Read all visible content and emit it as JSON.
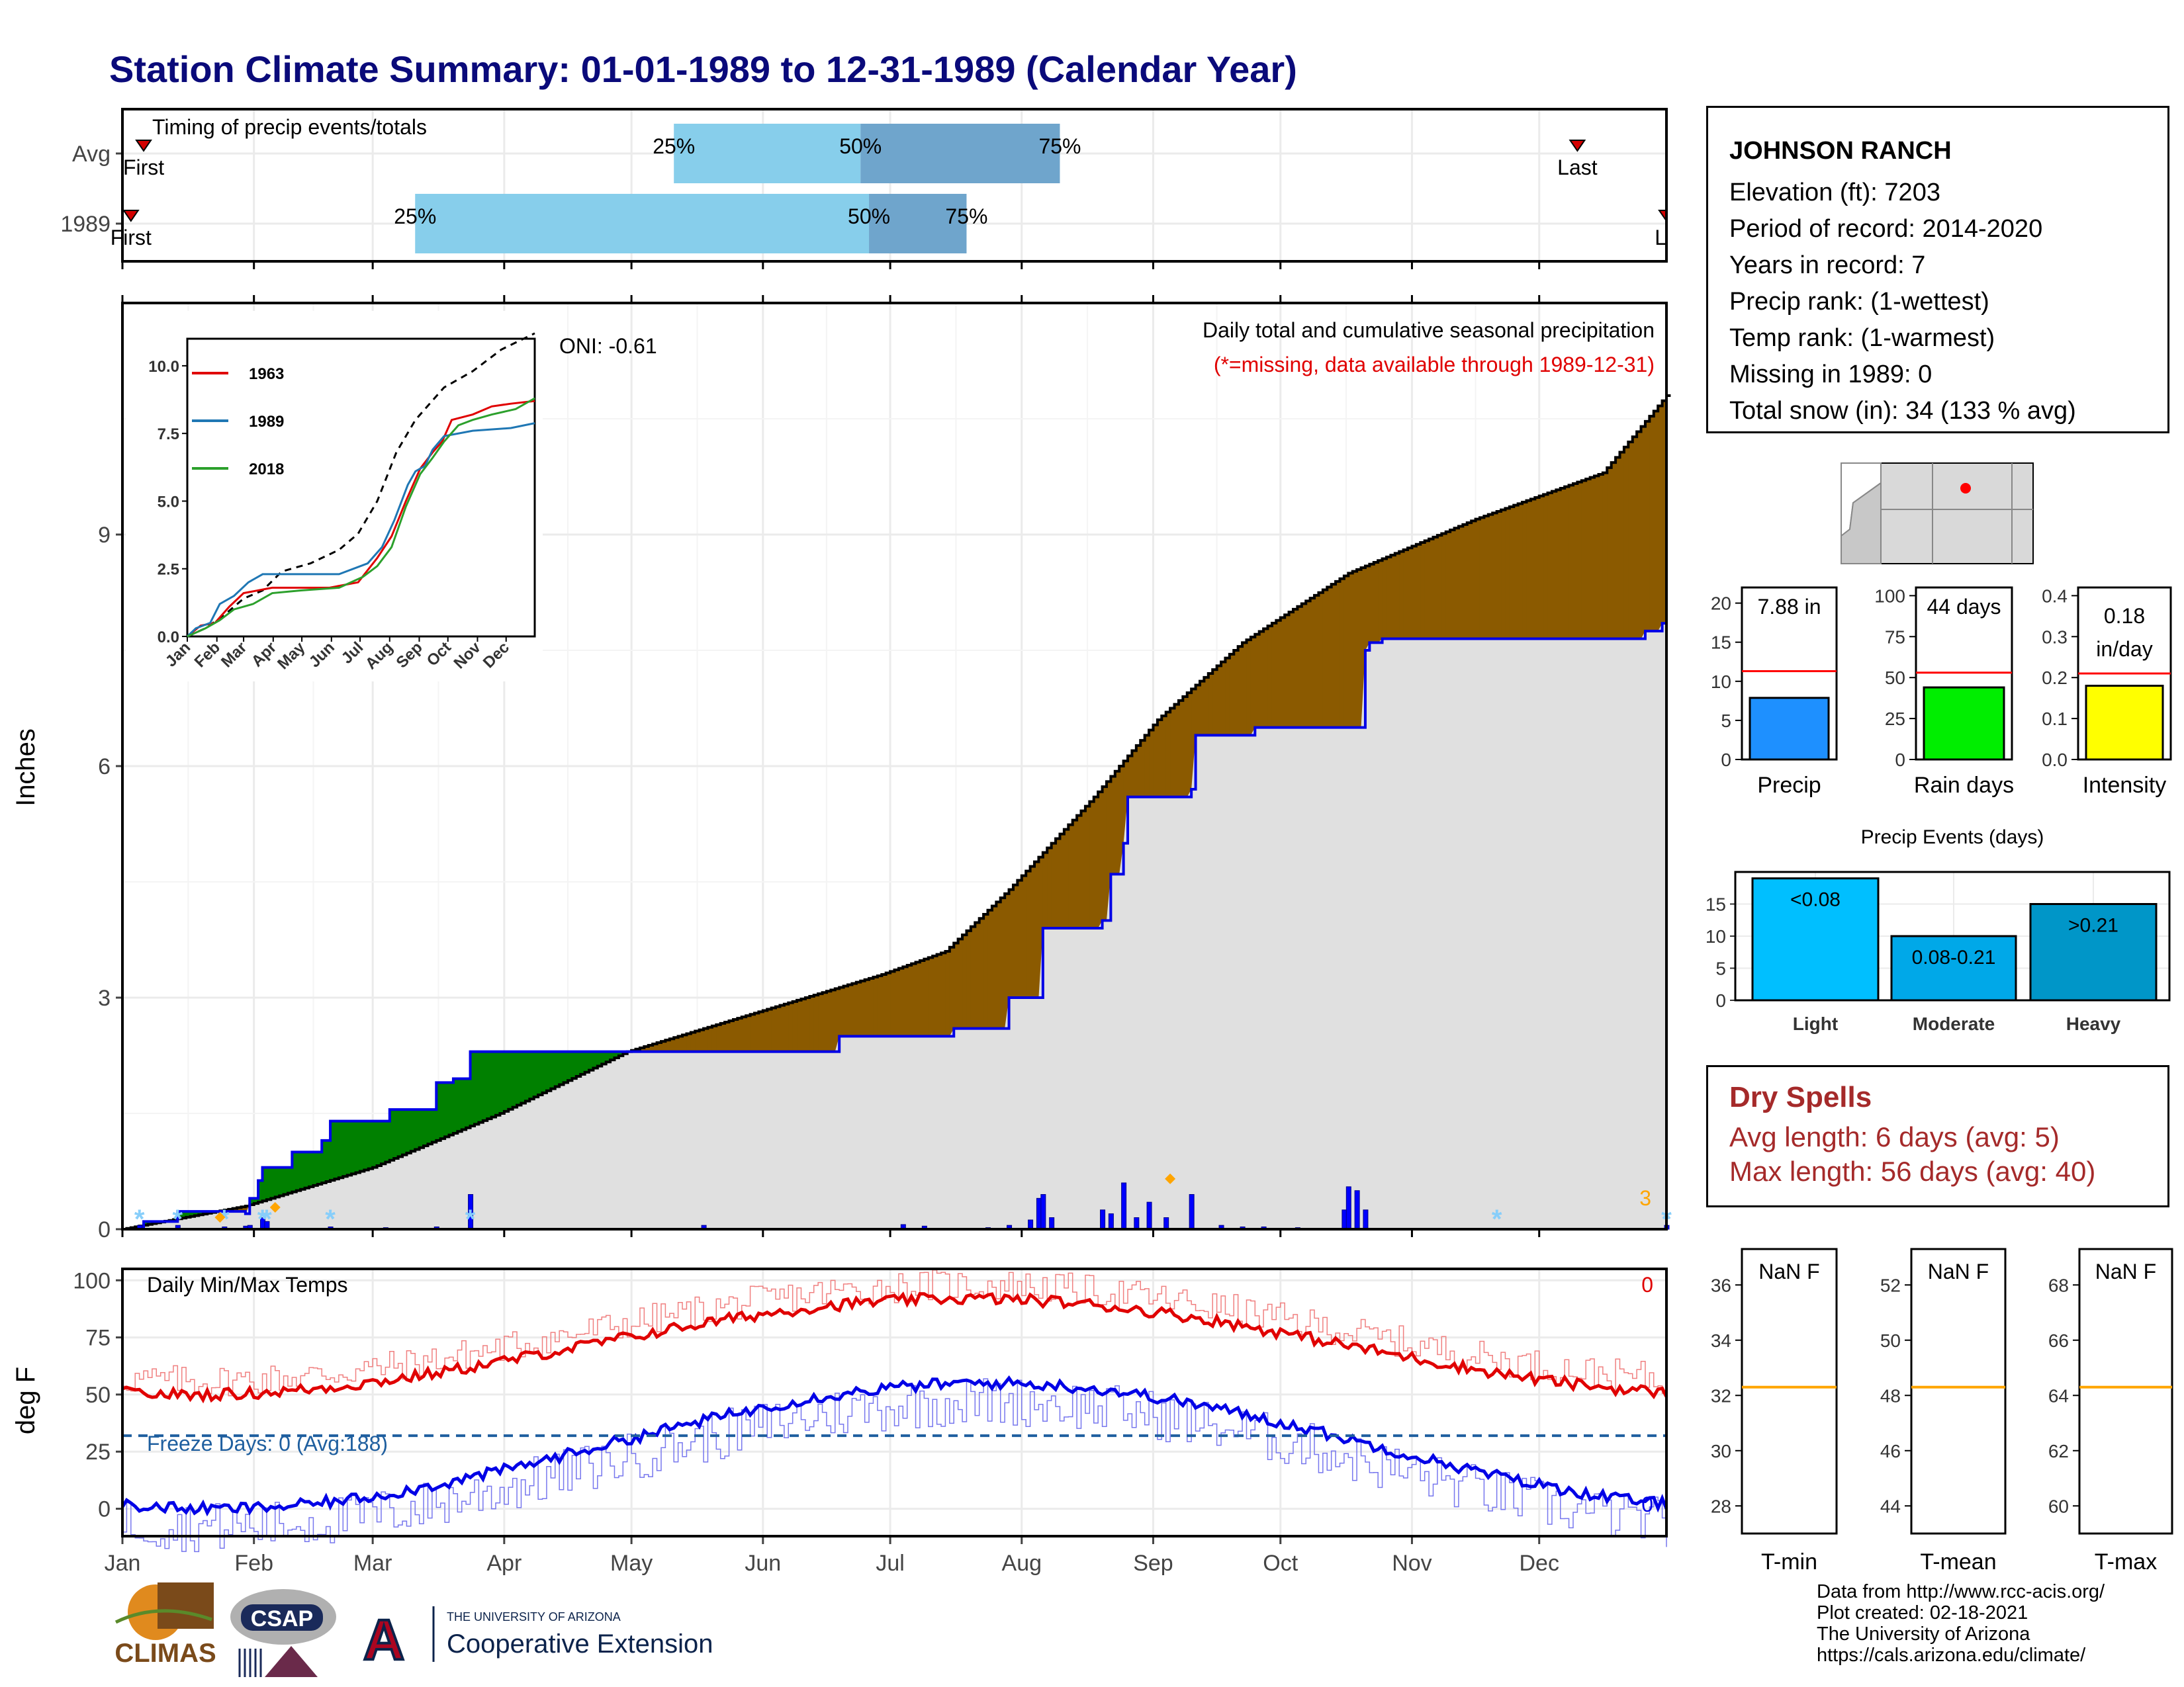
{
  "title": "Station Climate Summary: 01-01-1989 to 12-31-1989 (Calendar Year)",
  "station": {
    "name": "JOHNSON RANCH",
    "lines": [
      "Elevation (ft): 7203",
      "Period of record: 2014-2020",
      "Years in record: 7",
      "Precip rank:  (1-wettest)",
      "Temp rank:  (1-warmest)",
      "Missing in 1989: 0",
      "Total snow (in): 34 (133 % avg)"
    ]
  },
  "timing": {
    "title": "Timing of precip events/totals",
    "rows": [
      {
        "label": "Avg",
        "first_doy": 6,
        "last_doy": 344,
        "p25": 131,
        "p50": 175,
        "p75": 222,
        "first_label": "First",
        "last_label": "Last",
        "p25_label": "25%",
        "p50_label": "50%",
        "p75_label": "75%"
      },
      {
        "label": "1989",
        "first_doy": 3,
        "last_doy": 365,
        "p25": 70,
        "p50": 177,
        "p75": 200,
        "first_label": "First",
        "last_label": "La",
        "p25_label": "25%",
        "p50_label": "50%",
        "p75_label": "75%"
      }
    ]
  },
  "months": [
    "Jan",
    "Feb",
    "Mar",
    "Apr",
    "May",
    "Jun",
    "Jul",
    "Aug",
    "Sep",
    "Oct",
    "Nov",
    "Dec"
  ],
  "precip_panel": {
    "ylabel": "Inches",
    "title": "Daily total and cumulative seasonal precipitation",
    "missing_note": "(*=missing, data available through 1989-12-31)",
    "oni": "ONI: -0.61",
    "corner_count": "3",
    "ylim": [
      0,
      12
    ],
    "yticks": [
      0,
      3,
      6,
      9
    ]
  },
  "inset": {
    "legend": [
      "1963",
      "1989",
      "2018"
    ],
    "yticks": [
      "0.0",
      "2.5",
      "5.0",
      "7.5",
      "10.0"
    ],
    "months": [
      "Jan",
      "Feb",
      "Mar",
      "Apr",
      "May",
      "Jun",
      "Jul",
      "Aug",
      "Sep",
      "Oct",
      "Nov",
      "Dec"
    ]
  },
  "temp_panel": {
    "ylabel": "deg F",
    "title": "Daily Min/Max Temps",
    "freeze_text": "Freeze Days: 0 (Avg:188)",
    "max_count": "0",
    "min_count": "0",
    "yticks": [
      0,
      25,
      50,
      75,
      100
    ],
    "freeze_line": 32
  },
  "bars": [
    {
      "label": "Precip",
      "value_text": "7.88 in",
      "value": 7.88,
      "avg": 11.3,
      "ymax": 22,
      "ticks": [
        0,
        5,
        10,
        15,
        20
      ],
      "color": "#1e90ff"
    },
    {
      "label": "Rain days",
      "value_text": "44 days",
      "value": 44,
      "avg": 53,
      "ymax": 105,
      "ticks": [
        0,
        25,
        50,
        75,
        100
      ],
      "color": "#00ee00"
    },
    {
      "label": "Intensity",
      "value_text": "0.18 in/day",
      "value_line1": "0.18",
      "value_line2": "in/day",
      "value": 0.18,
      "avg": 0.21,
      "ymax": 0.42,
      "ticks": [
        0.0,
        0.1,
        0.2,
        0.3,
        0.4
      ],
      "color": "#ffff00"
    }
  ],
  "events": {
    "title": "Precip Events (days)",
    "categories": [
      "Light",
      "Moderate",
      "Heavy"
    ],
    "values": [
      19,
      10,
      15
    ],
    "labels": [
      "<0.08",
      "0.08-0.21",
      ">0.21"
    ],
    "colors": [
      "#00bfff",
      "#00a8e8",
      "#0096c8"
    ],
    "yticks": [
      0,
      5,
      10,
      15
    ],
    "ymax": 20
  },
  "dry_spells": {
    "title": "Dry Spells",
    "avg": "Avg length: 6 days (avg: 5)",
    "max": "Max length: 56 days (avg: 40)"
  },
  "temp_boxes": [
    {
      "label": "T-min",
      "value": "NaN F",
      "ticks": [
        28,
        30,
        32,
        34,
        36
      ],
      "avg": 32.3,
      "ymin": 27,
      "ymax": 37.3
    },
    {
      "label": "T-mean",
      "value": "NaN F",
      "ticks": [
        44,
        46,
        48,
        50,
        52
      ],
      "avg": 48.3,
      "ymin": 43,
      "ymax": 53.3
    },
    {
      "label": "T-max",
      "value": "NaN F",
      "ticks": [
        60,
        62,
        64,
        66,
        68
      ],
      "avg": 64.3,
      "ymin": 59,
      "ymax": 69.3
    }
  ],
  "footer": {
    "lines": [
      "Data from http://www.rcc-acis.org/",
      "Plot created: 02-18-2021",
      "The University of Arizona",
      "https://cals.arizona.edu/climate/"
    ],
    "logo_climas": "CLIMAS",
    "logo_csap": "CSAP",
    "logo_ua_small": "THE UNIVERSITY OF ARIZONA",
    "logo_ua_big": "Cooperative Extension"
  },
  "chart_data": {
    "type": "area",
    "x_unit": "day of year",
    "cumulative_1989": [
      [
        1,
        0
      ],
      [
        6,
        0.1
      ],
      [
        14,
        0.23
      ],
      [
        25,
        0.23
      ],
      [
        30,
        0.2
      ],
      [
        31,
        0.4
      ],
      [
        33,
        0.63
      ],
      [
        34,
        0.8
      ],
      [
        41,
        1.0
      ],
      [
        48,
        1.15
      ],
      [
        50,
        1.4
      ],
      [
        63,
        1.4
      ],
      [
        64,
        1.55
      ],
      [
        74,
        1.55
      ],
      [
        75,
        1.9
      ],
      [
        78,
        1.9
      ],
      [
        79,
        1.95
      ],
      [
        82,
        1.95
      ],
      [
        83,
        2.3
      ],
      [
        138,
        2.3
      ],
      [
        170,
        2.5
      ],
      [
        196,
        2.5
      ],
      [
        197,
        2.6
      ],
      [
        209,
        2.6
      ],
      [
        210,
        3.0
      ],
      [
        217,
        3.0
      ],
      [
        218,
        3.9
      ],
      [
        232,
        4.0
      ],
      [
        234,
        4.6
      ],
      [
        237,
        5.0
      ],
      [
        238,
        5.6
      ],
      [
        247,
        5.6
      ],
      [
        253,
        5.7
      ],
      [
        254,
        6.4
      ],
      [
        268,
        6.5
      ],
      [
        289,
        6.5
      ],
      [
        294,
        7.5
      ],
      [
        295,
        7.6
      ],
      [
        298,
        7.65
      ],
      [
        325,
        7.65
      ],
      [
        360,
        7.75
      ],
      [
        364,
        7.85
      ],
      [
        365,
        7.88
      ]
    ],
    "cumulative_avg": [
      [
        1,
        0
      ],
      [
        30,
        0.3
      ],
      [
        60,
        0.8
      ],
      [
        90,
        1.5
      ],
      [
        120,
        2.3
      ],
      [
        150,
        2.8
      ],
      [
        180,
        3.3
      ],
      [
        195,
        3.6
      ],
      [
        210,
        4.4
      ],
      [
        230,
        5.6
      ],
      [
        245,
        6.6
      ],
      [
        265,
        7.6
      ],
      [
        290,
        8.5
      ],
      [
        320,
        9.2
      ],
      [
        350,
        9.8
      ],
      [
        365,
        10.8
      ]
    ],
    "daily_1989": [
      [
        5,
        0.05
      ],
      [
        14,
        0.05
      ],
      [
        25,
        0.03
      ],
      [
        30,
        0.04
      ],
      [
        31,
        0.05
      ],
      [
        34,
        0.15
      ],
      [
        35,
        0.1
      ],
      [
        50,
        0.03
      ],
      [
        63,
        0.02
      ],
      [
        75,
        0.03
      ],
      [
        83,
        0.45
      ],
      [
        138,
        0.05
      ],
      [
        185,
        0.06
      ],
      [
        190,
        0.04
      ],
      [
        205,
        0.02
      ],
      [
        210,
        0.05
      ],
      [
        215,
        0.12
      ],
      [
        217,
        0.4
      ],
      [
        218,
        0.45
      ],
      [
        220,
        0.15
      ],
      [
        232,
        0.25
      ],
      [
        234,
        0.2
      ],
      [
        237,
        0.6
      ],
      [
        240,
        0.15
      ],
      [
        243,
        0.35
      ],
      [
        247,
        0.15
      ],
      [
        253,
        0.45
      ],
      [
        260,
        0.05
      ],
      [
        265,
        0.03
      ],
      [
        270,
        0.03
      ],
      [
        278,
        0.02
      ],
      [
        289,
        0.25
      ],
      [
        290,
        0.55
      ],
      [
        292,
        0.5
      ],
      [
        294,
        0.25
      ],
      [
        365,
        0.05
      ]
    ],
    "missing_markers_doy": [
      5,
      14,
      25,
      34,
      35,
      50,
      83,
      325,
      365
    ],
    "orange_markers": [
      [
        24,
        0.05
      ],
      [
        37,
        0.18
      ],
      [
        248,
        0.55
      ]
    ],
    "temp_avg_max_range": [
      50,
      92
    ],
    "temp_avg_min_range": [
      0,
      55
    ],
    "freeze_line_f": 32
  }
}
